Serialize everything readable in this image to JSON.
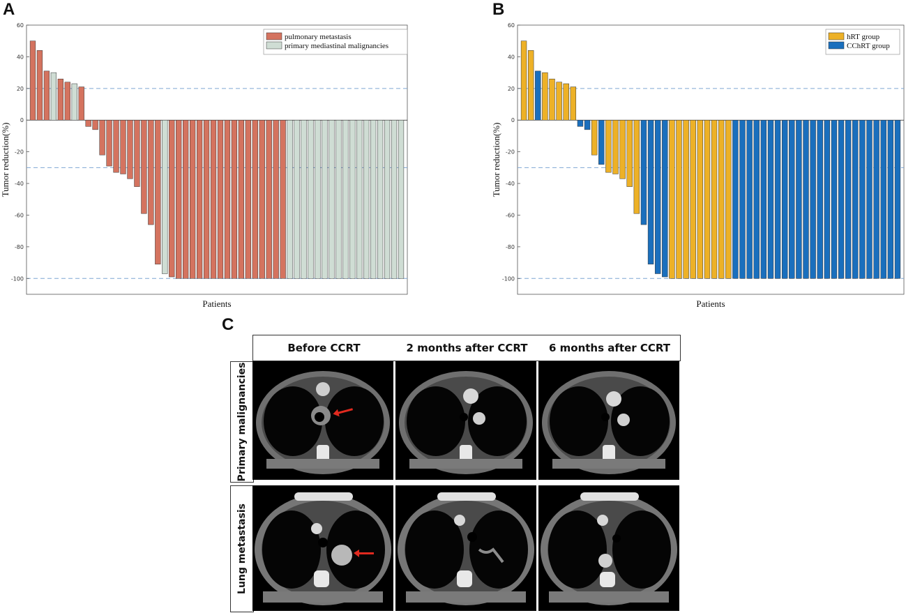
{
  "panels": {
    "a": "A",
    "b": "B",
    "c": "C"
  },
  "chart_data": [
    {
      "type": "bar",
      "panel": "A",
      "xlabel": "Patients",
      "ylabel": "Tumor reduction(%)",
      "ylim": [
        -110,
        60
      ],
      "yticks": [
        60,
        40,
        20,
        0,
        -20,
        -40,
        -60,
        -80,
        -100
      ],
      "reference_lines": [
        20,
        -30,
        -100
      ],
      "legend": [
        {
          "name": "pulmonary metastasis",
          "color": "#d4735f"
        },
        {
          "name": "primary mediastinal malignancies",
          "color": "#cfddd4"
        }
      ],
      "values": [
        50,
        44,
        31,
        30,
        26,
        24,
        23,
        21,
        -4,
        -6,
        -22,
        -29,
        -33,
        -34,
        -37,
        -42,
        -59,
        -66,
        -91,
        -97,
        -99,
        -100,
        -100,
        -100,
        -100,
        -100,
        -100,
        -100,
        -100,
        -100,
        -100,
        -100,
        -100,
        -100,
        -100,
        -100,
        -100,
        -100,
        -100,
        -100,
        -100,
        -100,
        -100,
        -100,
        -100,
        -100,
        -100,
        -100,
        -100,
        -100,
        -100,
        -100,
        -100,
        -100
      ],
      "groups": [
        0,
        0,
        0,
        1,
        0,
        0,
        1,
        0,
        0,
        0,
        0,
        0,
        0,
        0,
        0,
        0,
        0,
        0,
        0,
        1,
        0,
        0,
        0,
        0,
        0,
        0,
        0,
        0,
        0,
        0,
        0,
        0,
        0,
        0,
        0,
        0,
        0,
        1,
        1,
        1,
        1,
        1,
        1,
        1,
        1,
        1,
        1,
        1,
        1,
        1,
        1,
        1,
        1,
        1
      ]
    },
    {
      "type": "bar",
      "panel": "B",
      "xlabel": "Patients",
      "ylabel": "Tumor reduction(%)",
      "ylim": [
        -110,
        60
      ],
      "yticks": [
        60,
        40,
        20,
        0,
        -20,
        -40,
        -60,
        -80,
        -100
      ],
      "reference_lines": [
        20,
        -30,
        -100
      ],
      "legend": [
        {
          "name": "hRT group",
          "color": "#edb127"
        },
        {
          "name": "CChRT group",
          "color": "#1a6fbd"
        }
      ],
      "values": [
        50,
        44,
        31,
        30,
        26,
        24,
        23,
        21,
        -4,
        -6,
        -22,
        -28,
        -33,
        -34,
        -37,
        -42,
        -59,
        -66,
        -91,
        -97,
        -99,
        -100,
        -100,
        -100,
        -100,
        -100,
        -100,
        -100,
        -100,
        -100,
        -100,
        -100,
        -100,
        -100,
        -100,
        -100,
        -100,
        -100,
        -100,
        -100,
        -100,
        -100,
        -100,
        -100,
        -100,
        -100,
        -100,
        -100,
        -100,
        -100,
        -100,
        -100,
        -100,
        -100
      ],
      "groups": [
        0,
        0,
        1,
        0,
        0,
        0,
        0,
        0,
        1,
        1,
        0,
        1,
        0,
        0,
        0,
        0,
        0,
        1,
        1,
        1,
        1,
        0,
        0,
        0,
        0,
        0,
        0,
        0,
        0,
        0,
        1,
        1,
        1,
        1,
        1,
        1,
        1,
        1,
        1,
        1,
        1,
        1,
        1,
        1,
        1,
        1,
        1,
        1,
        1,
        1,
        1,
        1,
        1,
        1
      ]
    }
  ],
  "ct_panel": {
    "columns": [
      "Before CCRT",
      "2 months after CCRT",
      "6 months after CCRT"
    ],
    "rows": [
      "Primary malignancies",
      "Lung metastasis"
    ]
  }
}
